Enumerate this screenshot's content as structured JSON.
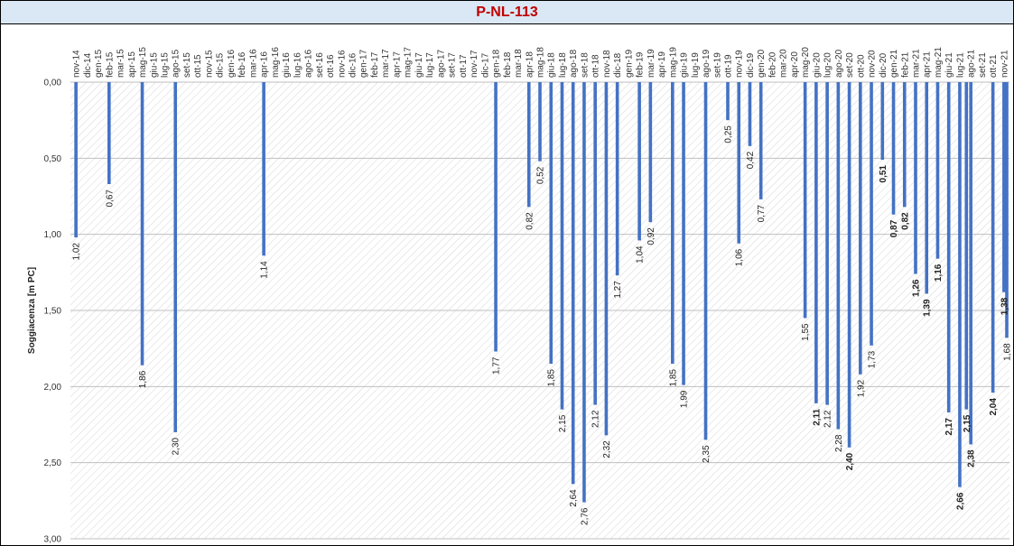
{
  "chart_data": {
    "type": "bar",
    "title": "P-NL-113",
    "ylabel": "Soggiacenza [m PC]",
    "xlabel": "",
    "y_inverted": true,
    "ylim": [
      0,
      3
    ],
    "yticks": [
      "0,00",
      "0,50",
      "1,00",
      "1,50",
      "2,00",
      "2,50",
      "3,00"
    ],
    "grid": true,
    "bar_color": "#4472c4",
    "categories": [
      "nov-14",
      "dic-14",
      "gen-15",
      "feb-15",
      "mar-15",
      "apr-15",
      "mag-15",
      "giu-15",
      "lug-15",
      "ago-15",
      "set-15",
      "ott-15",
      "nov-15",
      "dic-15",
      "gen-16",
      "feb-16",
      "mar-16",
      "apr-16",
      "mag-16",
      "giu-16",
      "lug-16",
      "ago-16",
      "set-16",
      "ott-16",
      "nov-16",
      "dic-16",
      "gen-17",
      "feb-17",
      "mar-17",
      "apr-17",
      "mag-17",
      "giu-17",
      "lug-17",
      "ago-17",
      "set-17",
      "ott-17",
      "nov-17",
      "dic-17",
      "gen-18",
      "feb-18",
      "mar-18",
      "apr-18",
      "mag-18",
      "giu-18",
      "lug-18",
      "ago-18",
      "set-18",
      "ott-18",
      "nov-18",
      "dic-18",
      "gen-19",
      "feb-19",
      "mar-19",
      "apr-19",
      "mag-19",
      "giu-19",
      "lug-19",
      "ago-19",
      "set-19",
      "ott-19",
      "nov-19",
      "dic-19",
      "gen-20",
      "feb-20",
      "mar-20",
      "apr-20",
      "mag-20",
      "giu-20",
      "lug-20",
      "ago-20",
      "set-20",
      "ott-20",
      "nov-20",
      "dic-20",
      "gen-21",
      "feb-21",
      "mar-21",
      "apr-21",
      "mag-21",
      "giu-21",
      "lug-21",
      "ago-21",
      "set-21",
      "ott-21",
      "nov-21"
    ],
    "points": [
      {
        "cat": "nov-14",
        "value": 1.02,
        "label": "1,02",
        "bold": false
      },
      {
        "cat": "feb-15",
        "value": 0.67,
        "label": "0,67",
        "bold": false
      },
      {
        "cat": "mag-15",
        "value": 1.86,
        "label": "1,86",
        "bold": false
      },
      {
        "cat": "ago-15",
        "value": 2.3,
        "label": "2,30",
        "bold": false
      },
      {
        "cat": "apr-16",
        "value": 1.14,
        "label": "1,14",
        "bold": false
      },
      {
        "cat": "gen-18",
        "value": 1.77,
        "label": "1,77",
        "bold": false
      },
      {
        "cat": "apr-18",
        "value": 0.82,
        "label": "0,82",
        "bold": false
      },
      {
        "cat": "mag-18",
        "value": 0.52,
        "label": "0,52",
        "bold": false
      },
      {
        "cat": "giu-18",
        "value": 1.85,
        "label": "1,85",
        "bold": false
      },
      {
        "cat": "lug-18",
        "value": 2.15,
        "label": "2,15",
        "bold": false
      },
      {
        "cat": "ago-18",
        "value": 2.64,
        "label": "2,64",
        "bold": false
      },
      {
        "cat": "set-18",
        "value": 2.76,
        "label": "2,76",
        "bold": false
      },
      {
        "cat": "ott-18",
        "value": 2.12,
        "label": "2,12",
        "bold": false
      },
      {
        "cat": "nov-18",
        "value": 2.32,
        "label": "2,32",
        "bold": false
      },
      {
        "cat": "dic-18",
        "value": 1.27,
        "label": "1,27",
        "bold": false
      },
      {
        "cat": "feb-19",
        "value": 1.04,
        "label": "1,04",
        "bold": false
      },
      {
        "cat": "mar-19",
        "value": 0.92,
        "label": "0,92",
        "bold": false
      },
      {
        "cat": "mag-19",
        "value": 1.85,
        "label": "1,85",
        "bold": false
      },
      {
        "cat": "giu-19",
        "value": 1.99,
        "label": "1,99",
        "bold": false
      },
      {
        "cat": "ago-19",
        "value": 2.35,
        "label": "2,35",
        "bold": false
      },
      {
        "cat": "ott-19",
        "value": 0.25,
        "label": "0,25",
        "bold": false
      },
      {
        "cat": "nov-19",
        "value": 1.06,
        "label": "1,06",
        "bold": false
      },
      {
        "cat": "dic-19",
        "value": 0.42,
        "label": "0,42",
        "bold": false
      },
      {
        "cat": "gen-20",
        "value": 0.77,
        "label": "0,77",
        "bold": false
      },
      {
        "cat": "mag-20",
        "value": 1.55,
        "label": "1,55",
        "bold": false
      },
      {
        "cat": "giu-20",
        "value": 2.11,
        "label": "2,11",
        "bold": true
      },
      {
        "cat": "lug-20",
        "value": 2.12,
        "label": "2,12",
        "bold": false
      },
      {
        "cat": "ago-20",
        "value": 2.28,
        "label": "2,28",
        "bold": false
      },
      {
        "cat": "set-20",
        "value": 2.4,
        "label": "2,40",
        "bold": true
      },
      {
        "cat": "ott-20",
        "value": 1.92,
        "label": "1,92",
        "bold": false
      },
      {
        "cat": "nov-20",
        "value": 1.73,
        "label": "1,73",
        "bold": false
      },
      {
        "cat": "dic-20",
        "value": 0.51,
        "label": "0,51",
        "bold": true
      },
      {
        "cat": "gen-21",
        "value": 0.87,
        "label": "0,87",
        "bold": true
      },
      {
        "cat": "feb-21",
        "value": 0.82,
        "label": "0,82",
        "bold": true
      },
      {
        "cat": "mar-21",
        "value": 1.26,
        "label": "1,26",
        "bold": true
      },
      {
        "cat": "apr-21",
        "value": 1.39,
        "label": "1,39",
        "bold": true
      },
      {
        "cat": "mag-21",
        "value": 1.16,
        "label": "1,16",
        "bold": true
      },
      {
        "cat": "giu-21",
        "value": 2.17,
        "label": "2,17",
        "bold": true
      },
      {
        "cat": "lug-21",
        "value": 2.66,
        "label": "2,66",
        "bold": true
      },
      {
        "cat": "lug-21",
        "value": 2.15,
        "label": "2,15",
        "bold": true
      },
      {
        "cat": "ago-21",
        "value": 2.38,
        "label": "2,38",
        "bold": true
      },
      {
        "cat": "ott-21",
        "value": 2.04,
        "label": "2,04",
        "bold": true
      },
      {
        "cat": "nov-21",
        "value": 1.38,
        "label": "1,38",
        "bold": true
      },
      {
        "cat": "nov-21",
        "value": 1.68,
        "label": "1,68",
        "bold": false
      }
    ]
  }
}
